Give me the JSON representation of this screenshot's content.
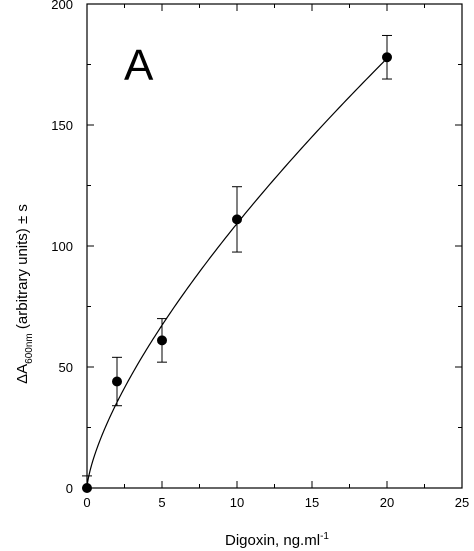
{
  "chart_data": {
    "type": "scatter",
    "panel_label": "A",
    "xlabel": "Digoxin, ng.ml",
    "xlabel_superscript": "-1",
    "ylabel_prefix": "ΔA",
    "ylabel_subscript": "600nm",
    "ylabel_suffix": " (arbitrary units) ± s",
    "xlim": [
      0,
      25
    ],
    "ylim": [
      0,
      200
    ],
    "x_ticks": [
      0,
      5,
      10,
      15,
      20,
      25
    ],
    "y_ticks": [
      0,
      50,
      100,
      150,
      200
    ],
    "x_tick_labels": [
      "0",
      "5",
      "10",
      "15",
      "20",
      "25"
    ],
    "y_tick_labels": [
      "0",
      "50",
      "100",
      "150",
      "200"
    ],
    "grid": false,
    "series": [
      {
        "points": [
          {
            "x": 0,
            "y": 0,
            "err": 5
          },
          {
            "x": 2,
            "y": 44,
            "err": 10
          },
          {
            "x": 5,
            "y": 61,
            "err": 9
          },
          {
            "x": 10,
            "y": 111,
            "err": 13.5
          },
          {
            "x": 20,
            "y": 178,
            "err": 9
          }
        ]
      }
    ],
    "fit_curve": {
      "type": "power",
      "a": 21.8,
      "b": 0.7
    }
  }
}
